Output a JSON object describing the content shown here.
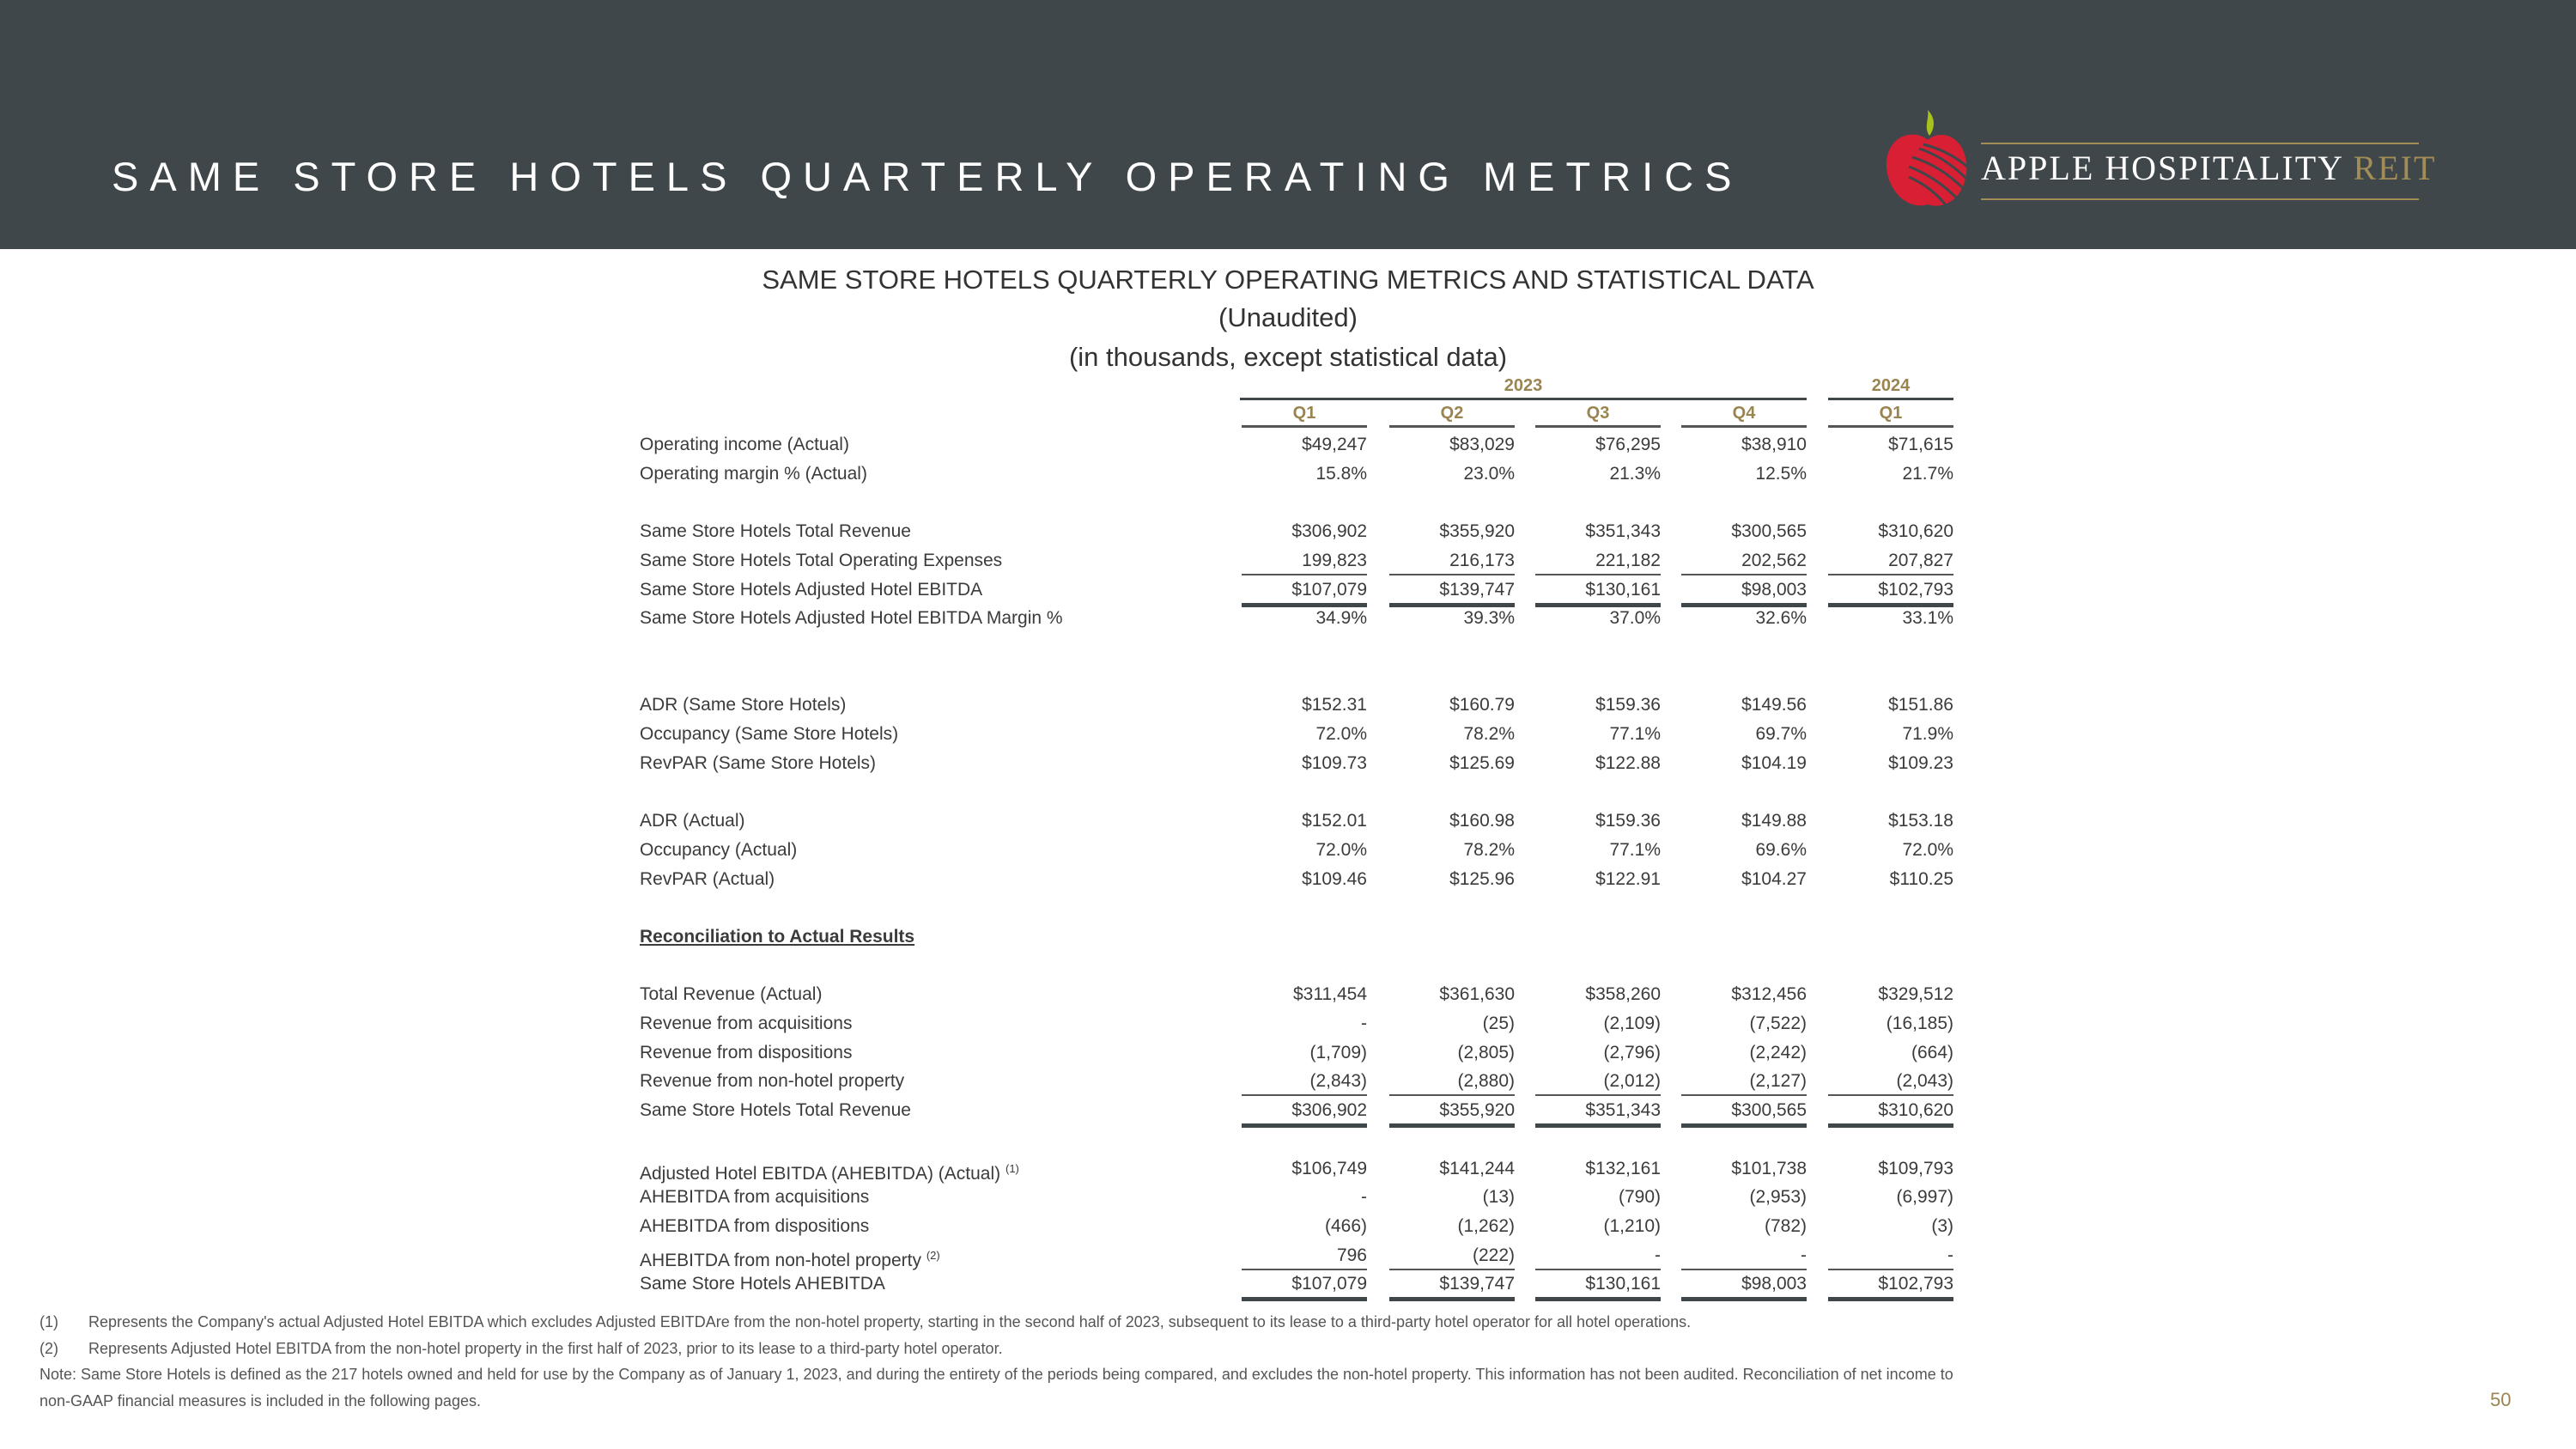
{
  "header": {
    "title": "SAME STORE HOTELS QUARTERLY OPERATING METRICS"
  },
  "logo": {
    "name": "APPLE HOSPITALITY",
    "suffix": "REIT"
  },
  "table": {
    "title": "SAME STORE HOTELS QUARTERLY OPERATING METRICS AND STATISTICAL DATA",
    "subtitle1": "(Unaudited)",
    "subtitle2": "(in thousands, except statistical data)",
    "years": [
      "2023",
      "2024"
    ],
    "quarters": [
      "Q1",
      "Q2",
      "Q3",
      "Q4",
      "Q1"
    ],
    "rows": [
      {
        "slot": 0,
        "label": "Operating income (Actual)",
        "values": [
          "$49,247",
          "$83,029",
          "$76,295",
          "$38,910",
          "$71,615"
        ]
      },
      {
        "slot": 1,
        "label": "Operating margin % (Actual)",
        "values": [
          "15.8%",
          "23.0%",
          "21.3%",
          "12.5%",
          "21.7%"
        ]
      },
      {
        "slot": 3,
        "label": "Same Store Hotels Total Revenue",
        "values": [
          "$306,902",
          "$355,920",
          "$351,343",
          "$300,565",
          "$310,620"
        ]
      },
      {
        "slot": 4,
        "label": "Same Store Hotels Total Operating Expenses",
        "values": [
          "199,823",
          "216,173",
          "221,182",
          "202,562",
          "207,827"
        ],
        "line": "ul"
      },
      {
        "slot": 5,
        "label": "Same Store Hotels Adjusted Hotel EBITDA",
        "values": [
          "$107,079",
          "$139,747",
          "$130,161",
          "$98,003",
          "$102,793"
        ],
        "line": "dul"
      },
      {
        "slot": 6,
        "label": "Same Store Hotels Adjusted Hotel EBITDA Margin %",
        "values": [
          "34.9%",
          "39.3%",
          "37.0%",
          "32.6%",
          "33.1%"
        ]
      },
      {
        "slot": 9,
        "label": "ADR (Same Store Hotels)",
        "values": [
          "$152.31",
          "$160.79",
          "$159.36",
          "$149.56",
          "$151.86"
        ]
      },
      {
        "slot": 10,
        "label": "Occupancy (Same Store Hotels)",
        "values": [
          "72.0%",
          "78.2%",
          "77.1%",
          "69.7%",
          "71.9%"
        ]
      },
      {
        "slot": 11,
        "label": "RevPAR (Same Store Hotels)",
        "values": [
          "$109.73",
          "$125.69",
          "$122.88",
          "$104.19",
          "$109.23"
        ]
      },
      {
        "slot": 13,
        "label": "ADR (Actual)",
        "values": [
          "$152.01",
          "$160.98",
          "$159.36",
          "$149.88",
          "$153.18"
        ]
      },
      {
        "slot": 14,
        "label": "Occupancy (Actual)",
        "values": [
          "72.0%",
          "78.2%",
          "77.1%",
          "69.6%",
          "72.0%"
        ]
      },
      {
        "slot": 15,
        "label": "RevPAR (Actual)",
        "values": [
          "$109.46",
          "$125.96",
          "$122.91",
          "$104.27",
          "$110.25"
        ]
      },
      {
        "slot": 17,
        "label": "Reconciliation to Actual Results",
        "values": [],
        "heading": true
      },
      {
        "slot": 19,
        "label": "Total Revenue (Actual)",
        "values": [
          "$311,454",
          "$361,630",
          "$358,260",
          "$312,456",
          "$329,512"
        ]
      },
      {
        "slot": 20,
        "label": "Revenue from acquisitions",
        "values": [
          "-",
          "(25)",
          "(2,109)",
          "(7,522)",
          "(16,185)"
        ]
      },
      {
        "slot": 21,
        "label": "Revenue from dispositions",
        "values": [
          "(1,709)",
          "(2,805)",
          "(2,796)",
          "(2,242)",
          "(664)"
        ]
      },
      {
        "slot": 22,
        "label": "Revenue from non-hotel property",
        "values": [
          "(2,843)",
          "(2,880)",
          "(2,012)",
          "(2,127)",
          "(2,043)"
        ],
        "line": "ul"
      },
      {
        "slot": 23,
        "label": "Same Store Hotels Total Revenue",
        "values": [
          "$306,902",
          "$355,920",
          "$351,343",
          "$300,565",
          "$310,620"
        ],
        "line": "dul"
      },
      {
        "slot": 25,
        "label": "Adjusted Hotel EBITDA (AHEBITDA) (Actual)",
        "note": "(1)",
        "values": [
          "$106,749",
          "$141,244",
          "$132,161",
          "$101,738",
          "$109,793"
        ]
      },
      {
        "slot": 26,
        "label": "AHEBITDA from acquisitions",
        "values": [
          "-",
          "(13)",
          "(790)",
          "(2,953)",
          "(6,997)"
        ]
      },
      {
        "slot": 27,
        "label": "AHEBITDA from dispositions",
        "values": [
          "(466)",
          "(1,262)",
          "(1,210)",
          "(782)",
          "(3)"
        ]
      },
      {
        "slot": 28,
        "label": "AHEBITDA from non-hotel property",
        "note": "(2)",
        "values": [
          "796",
          "(222)",
          "-",
          "-",
          "-"
        ],
        "line": "ul"
      },
      {
        "slot": 29,
        "label": "Same Store Hotels AHEBITDA",
        "values": [
          "$107,079",
          "$139,747",
          "$130,161",
          "$98,003",
          "$102,793"
        ],
        "line": "dul"
      }
    ]
  },
  "footnotes": [
    {
      "mark": "(1)",
      "text": "Represents the Company's actual Adjusted Hotel EBITDA which excludes Adjusted EBITDAre from the non-hotel property, starting in the second half of 2023, subsequent to its lease to a third-party hotel operator for all hotel operations."
    },
    {
      "mark": "(2)",
      "text": "Represents Adjusted Hotel EBITDA from the non-hotel property in the first half of 2023, prior to its lease to a third-party hotel operator."
    }
  ],
  "note": {
    "line1": "Note:  Same Store Hotels is defined as the 217 hotels owned and held for use by the Company as of January 1, 2023, and during the entirety of the periods being compared, and excludes the non-hotel property. This information has not been audited. Reconciliation of net income to",
    "line2": "non-GAAP financial measures is included in the following pages."
  },
  "page_number": "50"
}
